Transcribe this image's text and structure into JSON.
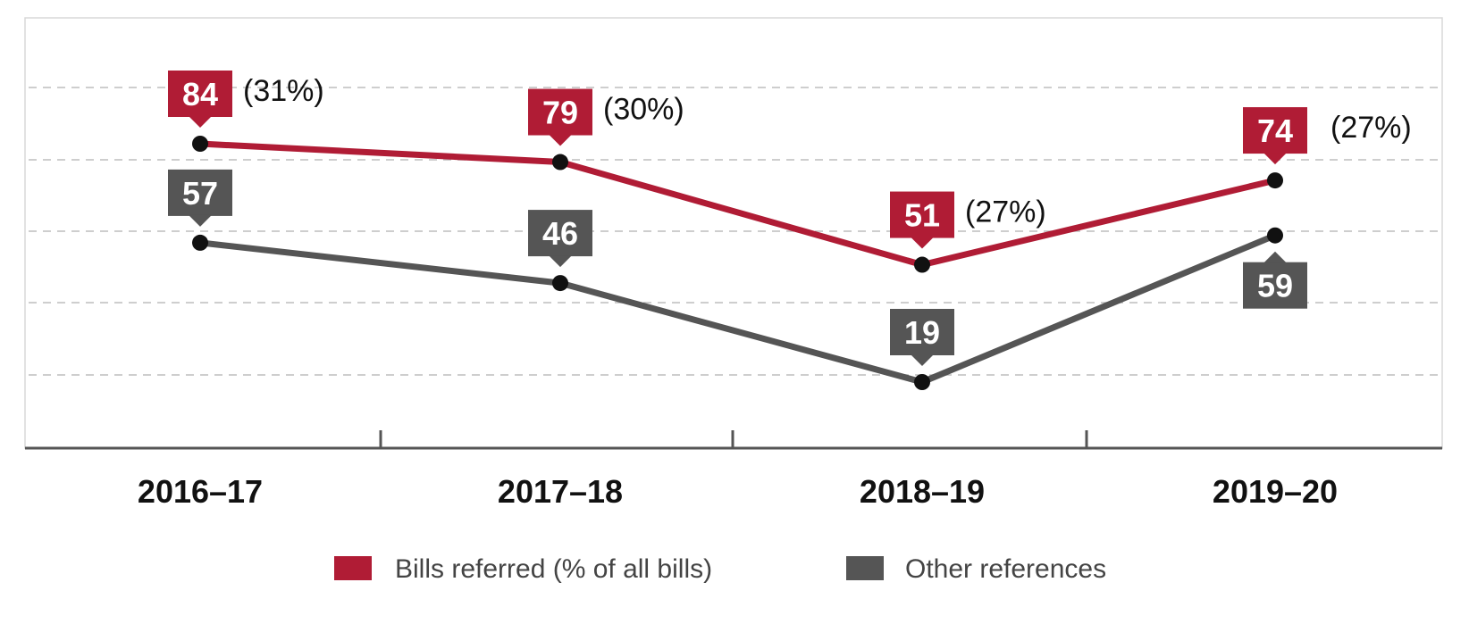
{
  "colors": {
    "bills": "#b01c35",
    "other": "#555555",
    "grid": "#bdbdbd",
    "axis": "#555555",
    "marker": "#111111"
  },
  "chart_data": {
    "type": "line",
    "categories": [
      "2016–17",
      "2017–18",
      "2018–19",
      "2019–20"
    ],
    "ylim": [
      0,
      100
    ],
    "grid": true,
    "legend_position": "bottom",
    "series": [
      {
        "name": "Bills referred (% of all bills)",
        "key": "bills",
        "values": [
          84,
          79,
          51,
          74
        ],
        "percent_labels": [
          "(31%)",
          "(30%)",
          "(27%)",
          "(27%)"
        ]
      },
      {
        "name": "Other references",
        "key": "other",
        "values": [
          57,
          46,
          19,
          59
        ]
      }
    ]
  }
}
